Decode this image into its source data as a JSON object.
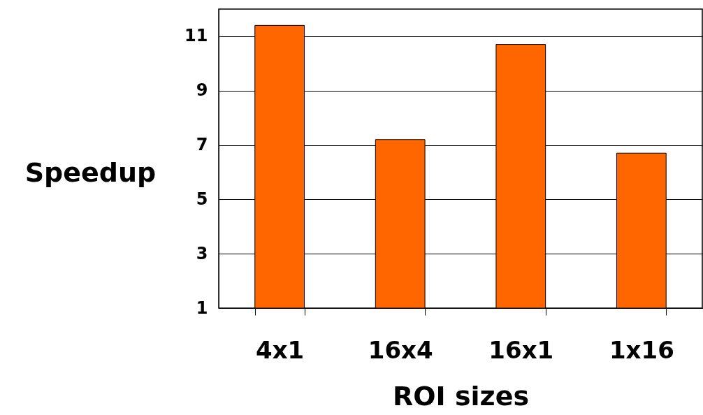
{
  "chart_data": {
    "type": "bar",
    "xlabel": "ROI sizes",
    "ylabel": "Speedup",
    "categories": [
      "4x1",
      "16x4",
      "16x1",
      "1x16"
    ],
    "values": [
      11.4,
      7.2,
      10.7,
      6.7
    ],
    "color": "#ff6600",
    "ylim": [
      1,
      12
    ],
    "yticks": [
      1,
      3,
      5,
      7,
      9,
      11
    ],
    "grid": "y"
  }
}
